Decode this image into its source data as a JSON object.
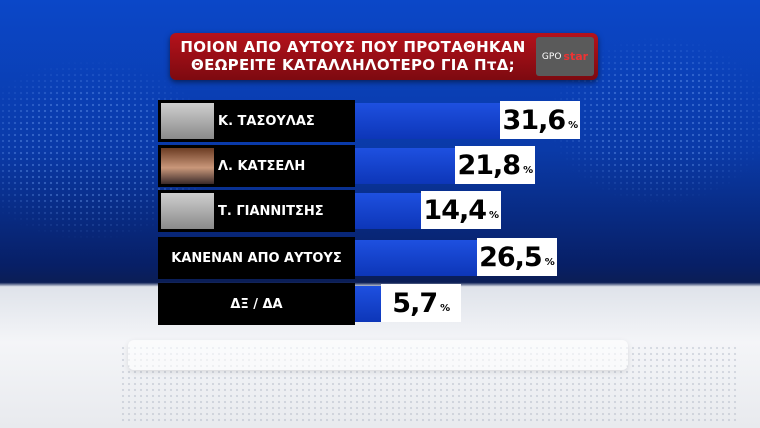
{
  "title": {
    "line1": "ΠΟΙΟΝ ΑΠΟ ΑΥΤΟΥΣ ΠΟΥ ΠΡΟΤΑΘΗΚΑΝ",
    "line2": "ΘΕΩΡΕΙΤΕ ΚΑΤΑΛΛΗΛΟΤΕΡΟ ΓΙΑ ΠτΔ;"
  },
  "logo": {
    "gpo": "GPO",
    "star": "star"
  },
  "colors": {
    "bar": "#1a48d6",
    "title_bg": "#a3101a",
    "label_bg": "#000000"
  },
  "chart_data": {
    "type": "bar",
    "orientation": "horizontal",
    "title": "ΠΟΙΟΝ ΑΠΟ ΑΥΤΟΥΣ ΠΟΥ ΠΡΟΤΑΘΗΚΑΝ ΘΕΩΡΕΙΤΕ ΚΑΤΑΛΛΗΛΟΤΕΡΟ ΓΙΑ ΠτΔ;",
    "categories": [
      "Κ. ΤΑΣΟΥΛΑΣ",
      "Λ. ΚΑΤΣΕΛΗ",
      "Τ. ΓΙΑΝΝΙΤΣΗΣ",
      "ΚΑΝΕΝΑΝ ΑΠΟ ΑΥΤΟΥΣ",
      "ΔΞ / ΔΑ"
    ],
    "values": [
      31.6,
      21.8,
      14.4,
      26.5,
      5.7
    ],
    "labels": [
      "31,6",
      "21,8",
      "14,4",
      "26,5",
      "5,7"
    ],
    "unit": "%",
    "photos": [
      true,
      true,
      true,
      false,
      false
    ]
  }
}
